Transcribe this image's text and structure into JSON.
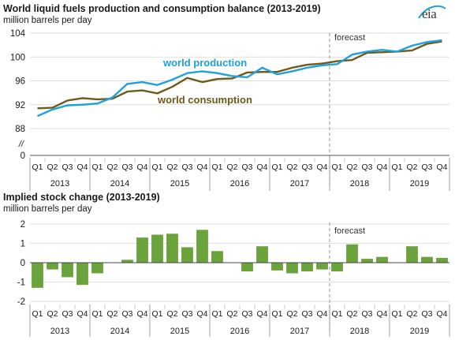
{
  "logo": {
    "text": "eia"
  },
  "chart_data": [
    {
      "type": "line",
      "title": "World liquid fuels production and consumption balance (2013-2019)",
      "ylabel": "million barrels per day",
      "ylim": [
        88,
        104
      ],
      "y_baseline_label": "0",
      "y_break_symbol": "//",
      "yticks": [
        88,
        92,
        96,
        100,
        104
      ],
      "categories": [
        "Q1",
        "Q2",
        "Q3",
        "Q4",
        "Q1",
        "Q2",
        "Q3",
        "Q4",
        "Q1",
        "Q2",
        "Q3",
        "Q4",
        "Q1",
        "Q2",
        "Q3",
        "Q4",
        "Q1",
        "Q2",
        "Q3",
        "Q4",
        "Q1",
        "Q2",
        "Q3",
        "Q4",
        "Q1",
        "Q2",
        "Q3",
        "Q4"
      ],
      "years": [
        "2013",
        "2014",
        "2015",
        "2016",
        "2017",
        "2018",
        "2019"
      ],
      "forecast_label": "forecast",
      "forecast_start_index": 20,
      "series": [
        {
          "name": "world production",
          "color": "#1ea1dc",
          "values": [
            90.1,
            91.2,
            91.9,
            92.0,
            92.2,
            93.2,
            95.5,
            95.8,
            95.3,
            96.2,
            97.3,
            97.6,
            97.3,
            96.8,
            96.6,
            98.2,
            97.1,
            97.6,
            98.2,
            98.6,
            98.8,
            100.4,
            100.9,
            101.2,
            100.9,
            101.9,
            102.5,
            102.8
          ]
        },
        {
          "name": "world consumption",
          "color": "#6e5a1a",
          "values": [
            91.4,
            91.5,
            92.7,
            93.1,
            92.9,
            93.0,
            94.2,
            94.4,
            93.9,
            95.0,
            96.5,
            95.8,
            96.3,
            96.4,
            97.4,
            97.5,
            97.5,
            98.2,
            98.7,
            98.9,
            99.3,
            99.5,
            100.7,
            100.8,
            100.9,
            101.1,
            102.2,
            102.6
          ]
        }
      ]
    },
    {
      "type": "bar",
      "title": "Implied stock change (2013-2019)",
      "ylabel": "million barrels per day",
      "ylim": [
        -2,
        2
      ],
      "yticks": [
        -2,
        -1,
        0,
        1,
        2
      ],
      "categories": [
        "Q1",
        "Q2",
        "Q3",
        "Q4",
        "Q1",
        "Q2",
        "Q3",
        "Q4",
        "Q1",
        "Q2",
        "Q3",
        "Q4",
        "Q1",
        "Q2",
        "Q3",
        "Q4",
        "Q1",
        "Q2",
        "Q3",
        "Q4",
        "Q1",
        "Q2",
        "Q3",
        "Q4",
        "Q1",
        "Q2",
        "Q3",
        "Q4"
      ],
      "years": [
        "2013",
        "2014",
        "2015",
        "2016",
        "2017",
        "2018",
        "2019"
      ],
      "forecast_label": "forecast",
      "forecast_start_index": 20,
      "bar_color": "#6aa23c",
      "values": [
        -1.3,
        -0.35,
        -0.75,
        -1.15,
        -0.55,
        0.0,
        0.15,
        1.3,
        1.45,
        1.5,
        0.8,
        1.7,
        0.6,
        0.0,
        -0.45,
        0.85,
        -0.4,
        -0.55,
        -0.45,
        -0.35,
        -0.45,
        0.95,
        0.2,
        0.3,
        0.0,
        0.85,
        0.3,
        0.25
      ]
    }
  ]
}
